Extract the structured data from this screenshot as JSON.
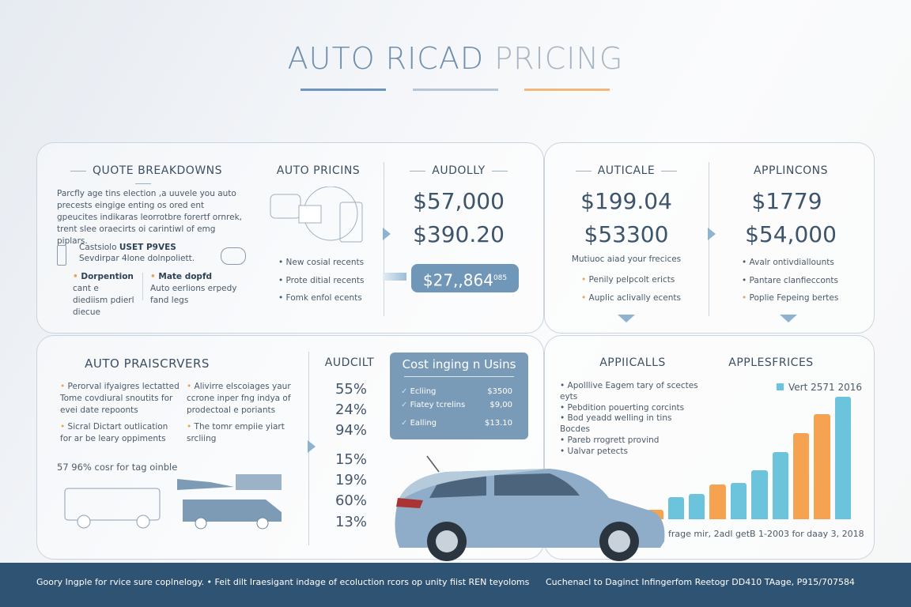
{
  "title": {
    "part1": "AUTO RICAD",
    "part2": "PRICING"
  },
  "colors": {
    "accent_blue": "#6f8fae",
    "orange": "#f5a350",
    "bar_blue": "#6cc3dc",
    "footer": "#2f5373"
  },
  "quote": {
    "heading": "QUOTE BREAKDOWNS",
    "body": "Parcfly age tins election ,a uuvele you auto precests eingige enting os ored ent gpeucites indikaras leorrotbre forertf ornrek, trent slee oraecirts oi carintiwl of emg piplars.",
    "cost_label": "Castsiolo",
    "cost_bold": "USET P9VES",
    "cost_sub": "Sevdirpar 4lone dolnpoliett.",
    "col1_title": "Dorpention",
    "col1_text": "cant e diediism pdierl diecue",
    "col2_title": "Mate dopfd",
    "col2_text": "Auto eerlions erpedy fand legs"
  },
  "auto_pricins": {
    "heading": "AUTO PRICINS",
    "items": [
      "New cosial recents",
      "Prote ditial recents",
      "Fomk enfol ecents"
    ]
  },
  "audolly": {
    "heading": "AUDOLLY",
    "price1": "$57,000",
    "price2": "$390.20",
    "highlight": "$27,,864",
    "highlight_sup": "085"
  },
  "auticale": {
    "heading": "AUTICALE",
    "price1": "$199.04",
    "price2": "$53300",
    "sub": "Mutiuoc aiad your frecices",
    "items": [
      "Penily pelpcolt ericts",
      "Auplic aclivally ecents"
    ]
  },
  "applincons": {
    "heading": "APPLINCONS",
    "price1": "$1779",
    "price2": "$54,000",
    "items": [
      "Avalr ontivdiallounts",
      "Pantare clanfiecconts",
      "Poplie Fepeing bertes"
    ]
  },
  "praiscrvers": {
    "heading": "AUTO PRAISCRVERS",
    "bullets": [
      "Perorval ifyaigres lectatted Tome covdiural snoutits for evei date repoonts",
      "Alivirre elscoiages yaur ccrone inper fng indya of prodectoal e poriants",
      "Sicral Dictart outlication for ar be leary oppiments",
      "The tomr empiie yiart srcliing"
    ],
    "note": "57 96% cosr for tag oinble"
  },
  "audcilt": {
    "heading": "AUDCILT",
    "percents": [
      "55%",
      "24%",
      "94%",
      "15%",
      "19%",
      "60%",
      "13%"
    ]
  },
  "costing": {
    "heading": "Cost inging n Usins",
    "rows": [
      {
        "label": "Ecliing",
        "value": "$3500"
      },
      {
        "label": "Fiatey tcrelins",
        "value": "$9,00"
      },
      {
        "label": "Ealling",
        "value": "$13.10"
      }
    ]
  },
  "applicalls": {
    "heading": "APPIICALLS",
    "bullets": [
      "Apolllive Eagem tary of scectes eyts",
      "Pebdition pouerting corcints",
      "Bod yeadd welling in tins Bocdes",
      "Pareb rrogrett provind",
      "Ualvar petects"
    ]
  },
  "chart_data": {
    "type": "bar",
    "title": "APPLESFRICES",
    "legend": "Vert 2571 2016",
    "legend_placement": "top-right",
    "caption": "frage mir, 2adl getB 1-2003 for daay 3, 2018",
    "grid": false,
    "values": [
      6,
      12,
      28,
      32,
      44,
      46,
      62,
      84,
      108,
      132,
      154
    ],
    "colors": [
      "blue",
      "orange",
      "blue",
      "blue",
      "orange",
      "blue",
      "blue",
      "blue",
      "orange",
      "orange",
      "blue"
    ]
  },
  "footer": {
    "left": "Goory Ingple for rvice sure coplnelogy. • Feit dilt Iraesigant indage of ecoluction rcors op unity fiist REN teyoloms",
    "right": "Cuchenacl to Daginct Infingerfom Reetogr DD410 TAage, P915/707584"
  }
}
